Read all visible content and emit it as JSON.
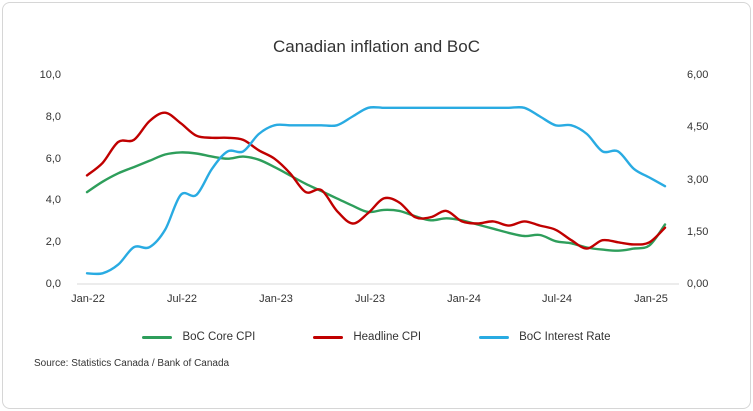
{
  "title": "Canadian inflation and BoC",
  "source": "Source: Statistics Canada / Bank of Canada",
  "colors": {
    "core_cpi": "#2e9e5b",
    "headline_cpi": "#c00000",
    "interest_rate": "#29abe2",
    "axis_line": "#d9d9d9",
    "text": "#333333"
  },
  "chart_data": {
    "type": "line",
    "title": "Canadian inflation and BoC",
    "grid": false,
    "legend_position": "bottom",
    "x_months": [
      "Jan-22",
      "Feb-22",
      "Mar-22",
      "Apr-22",
      "May-22",
      "Jun-22",
      "Jul-22",
      "Aug-22",
      "Sep-22",
      "Oct-22",
      "Nov-22",
      "Dec-22",
      "Jan-23",
      "Feb-23",
      "Mar-23",
      "Apr-23",
      "May-23",
      "Jun-23",
      "Jul-23",
      "Aug-23",
      "Sep-23",
      "Oct-23",
      "Nov-23",
      "Dec-23",
      "Jan-24",
      "Feb-24",
      "Mar-24",
      "Apr-24",
      "May-24",
      "Jun-24",
      "Jul-24",
      "Aug-24",
      "Sep-24",
      "Oct-24",
      "Nov-24",
      "Dec-24",
      "Jan-25",
      "Feb-25"
    ],
    "x_tick_labels": [
      "Jan-22",
      "Jul-22",
      "Jan-23",
      "Jul-23",
      "Jan-24",
      "Jul-24",
      "Jan-25"
    ],
    "x_tick_indices": [
      0,
      6,
      12,
      18,
      24,
      30,
      36
    ],
    "left_axis": {
      "min": 0,
      "max": 10,
      "ticks_ttb": [
        "10,0",
        "8,0",
        "6,0",
        "4,0",
        "2,0",
        "0,0"
      ]
    },
    "right_axis": {
      "min": 0,
      "max": 6,
      "ticks_ttb": [
        "6,00",
        "4,50",
        "3,00",
        "1,50",
        "0,00"
      ]
    },
    "series": [
      {
        "name": "BoC Core CPI",
        "axis": "left",
        "color": "#2e9e5b",
        "values": [
          4.3,
          4.8,
          5.2,
          5.5,
          5.8,
          6.1,
          6.2,
          6.15,
          6.0,
          5.9,
          6.0,
          5.85,
          5.5,
          5.1,
          4.7,
          4.35,
          4.0,
          3.65,
          3.35,
          3.45,
          3.4,
          3.15,
          2.95,
          3.05,
          2.95,
          2.75,
          2.55,
          2.35,
          2.2,
          2.25,
          1.95,
          1.85,
          1.65,
          1.55,
          1.5,
          1.6,
          1.75,
          2.75
        ]
      },
      {
        "name": "Headline CPI",
        "axis": "left",
        "color": "#c00000",
        "values": [
          5.1,
          5.7,
          6.7,
          6.8,
          7.7,
          8.1,
          7.6,
          7.0,
          6.9,
          6.9,
          6.8,
          6.3,
          5.9,
          5.2,
          4.3,
          4.4,
          3.4,
          2.8,
          3.3,
          4.0,
          3.8,
          3.1,
          3.1,
          3.4,
          2.9,
          2.8,
          2.9,
          2.7,
          2.9,
          2.7,
          2.5,
          2.0,
          1.6,
          2.0,
          1.9,
          1.8,
          1.9,
          2.6
        ]
      },
      {
        "name": "BoC Interest Rate",
        "axis": "right",
        "color": "#29abe2",
        "values": [
          0.25,
          0.25,
          0.5,
          1.0,
          1.0,
          1.5,
          2.5,
          2.5,
          3.25,
          3.75,
          3.75,
          4.25,
          4.5,
          4.5,
          4.5,
          4.5,
          4.5,
          4.75,
          5.0,
          5.0,
          5.0,
          5.0,
          5.0,
          5.0,
          5.0,
          5.0,
          5.0,
          5.0,
          5.0,
          4.75,
          4.5,
          4.5,
          4.25,
          3.75,
          3.75,
          3.25,
          3.0,
          2.75
        ]
      }
    ]
  }
}
